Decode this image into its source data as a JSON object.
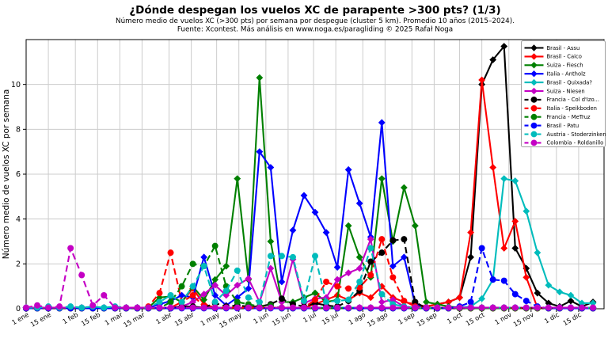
{
  "chart_data": {
    "type": "line",
    "title": "¿Dónde despegan los vuelos XC de parapente >300 pts? (1/3)",
    "subtitle_line1": "Número medio de vuelos XC (>300 pts) por semana por despegue (cluster 5 km). Promedio 10 años (2015–2024).",
    "subtitle_line2": "Fuente: Xcontest. Más análisis en www.noga.es/paragliding © 2025 Rafał Noga",
    "xlabel": "",
    "ylabel": "Número medio de vuelos XC por semana",
    "ylim": [
      0,
      12
    ],
    "yticks": [
      0,
      2,
      4,
      6,
      8,
      10
    ],
    "grid": true,
    "legend_position": "upper right",
    "x_unit": "semana del año (52 puntos semanales)",
    "xticks": [
      {
        "label": "1 ene",
        "week": 0
      },
      {
        "label": "15 ene",
        "week": 2.0
      },
      {
        "label": "1 feb",
        "week": 4.43
      },
      {
        "label": "15 feb",
        "week": 6.43
      },
      {
        "label": "1 mar",
        "week": 8.43
      },
      {
        "label": "15 mar",
        "week": 10.43
      },
      {
        "label": "1 abr",
        "week": 12.86
      },
      {
        "label": "15 abr",
        "week": 14.86
      },
      {
        "label": "1 may",
        "week": 17.14
      },
      {
        "label": "15 may",
        "week": 19.14
      },
      {
        "label": "1 jun",
        "week": 21.57
      },
      {
        "label": "15 jun",
        "week": 23.57
      },
      {
        "label": "1 jul",
        "week": 25.86
      },
      {
        "label": "15 jul",
        "week": 27.86
      },
      {
        "label": "1 ago",
        "week": 30.29
      },
      {
        "label": "15 ago",
        "week": 32.29
      },
      {
        "label": "1 sep",
        "week": 34.71
      },
      {
        "label": "15 sep",
        "week": 36.71
      },
      {
        "label": "1 oct",
        "week": 39.0
      },
      {
        "label": "15 oct",
        "week": 41.0
      },
      {
        "label": "1 nov",
        "week": 43.43
      },
      {
        "label": "15 nov",
        "week": 45.43
      },
      {
        "label": "1 dic",
        "week": 47.71
      },
      {
        "label": "15 dic",
        "week": 49.71
      }
    ],
    "series": [
      {
        "id": "assu",
        "name": "Brasil - Assu",
        "color": "#000000",
        "line": "solid",
        "marker": "diamond",
        "values": [
          0.05,
          0.05,
          0.05,
          0.05,
          0.05,
          0.05,
          0.05,
          0.05,
          0.05,
          0.05,
          0.05,
          0.05,
          0.05,
          0.05,
          0.05,
          0.05,
          0.05,
          0.05,
          0.05,
          0.05,
          0.05,
          0.05,
          0.05,
          0.05,
          0.05,
          0.05,
          0.05,
          0.05,
          0.05,
          0.05,
          0.05,
          0.05,
          0.05,
          0.05,
          0.05,
          0.05,
          0.1,
          0.2,
          0.3,
          0.5,
          2.3,
          10,
          11.1,
          11.7,
          2.7,
          1.8,
          0.7,
          0.25,
          0.1,
          0.35,
          0.1,
          0.3
        ]
      },
      {
        "id": "caico",
        "name": "Brasil - Caico",
        "color": "#ff0000",
        "line": "solid",
        "marker": "diamond",
        "values": [
          0.05,
          0.05,
          0.05,
          0.05,
          0.05,
          0.05,
          0.05,
          0.05,
          0.05,
          0.05,
          0.05,
          0.05,
          0.05,
          0.05,
          0.3,
          0.9,
          0.2,
          0.05,
          0.05,
          0.05,
          0.05,
          0.05,
          0.05,
          0.05,
          0.05,
          0.05,
          0.2,
          0.4,
          0.6,
          0.4,
          0.7,
          0.5,
          1,
          0.5,
          0.3,
          0.2,
          0.1,
          0.2,
          0.3,
          0.5,
          3.4,
          10.2,
          6.3,
          2.7,
          3.9,
          1.4,
          0.05,
          0.05,
          0.05,
          0.05,
          0.05,
          0.05
        ]
      },
      {
        "id": "fiesch",
        "name": "Suiza - Fiesch",
        "color": "#008000",
        "line": "solid",
        "marker": "diamond",
        "values": [
          0.05,
          0.05,
          0.05,
          0.05,
          0.05,
          0.05,
          0.05,
          0.05,
          0.05,
          0.05,
          0.05,
          0.05,
          0.5,
          0.55,
          0.3,
          1,
          0.4,
          1.3,
          1.9,
          5.8,
          1.3,
          10.3,
          3,
          0.3,
          0.3,
          0.5,
          0.7,
          0.3,
          0.4,
          3.7,
          2.3,
          1.4,
          5.8,
          3,
          5.4,
          3.7,
          0.3,
          0.2,
          0.1,
          0.05,
          0.05,
          0.05,
          0.05,
          0.05,
          0.05,
          0.05,
          0.05,
          0.05,
          0.05,
          0.05,
          0.05,
          0.05
        ]
      },
      {
        "id": "antholz",
        "name": "Italia - Antholz",
        "color": "#0000ff",
        "line": "solid",
        "marker": "diamond",
        "values": [
          0.05,
          0.05,
          0.05,
          0.05,
          0.05,
          0.05,
          0.05,
          0.05,
          0.05,
          0.05,
          0.05,
          0.05,
          0.2,
          0.35,
          0.6,
          0.5,
          2.3,
          0.6,
          0.15,
          0.5,
          0.9,
          7,
          6.3,
          1.2,
          3.5,
          5.05,
          4.3,
          3.4,
          1.85,
          6.2,
          4.7,
          3.2,
          8.3,
          1.9,
          2.3,
          0.2,
          0.05,
          0.05,
          0.05,
          0.05,
          0.05,
          0.05,
          0.05,
          0.05,
          0.05,
          0.05,
          0.05,
          0.05,
          0.05,
          0.05,
          0.05,
          0.05
        ]
      },
      {
        "id": "quixada",
        "name": "Brasil - Quixada?",
        "color": "#00bcbc",
        "line": "solid",
        "marker": "diamond",
        "values": [
          0.05,
          0.05,
          0.05,
          0.05,
          0.05,
          0.05,
          0.05,
          0.05,
          0.05,
          0.05,
          0.05,
          0.05,
          0.05,
          0.05,
          0.05,
          0.05,
          0.05,
          0.05,
          0.05,
          0.05,
          0.05,
          0.05,
          0.05,
          0.05,
          0.05,
          0.05,
          0.05,
          0.05,
          0.05,
          0.05,
          0.05,
          0.05,
          0.05,
          0.05,
          0.05,
          0.05,
          0.05,
          0.05,
          0.05,
          0.05,
          0.1,
          0.45,
          1.3,
          5.8,
          5.7,
          4.35,
          2.5,
          1.05,
          0.75,
          0.6,
          0.25,
          0.25
        ]
      },
      {
        "id": "niesen",
        "name": "Suiza - Niesen",
        "color": "#c400c4",
        "line": "solid",
        "marker": "diamond",
        "values": [
          0.05,
          0.05,
          0.05,
          0.05,
          0.05,
          0.05,
          0.05,
          0.05,
          0.05,
          0.05,
          0.05,
          0.05,
          0.05,
          0.05,
          0.1,
          0.3,
          0.65,
          1.05,
          0.6,
          1.05,
          1.35,
          0.3,
          1.8,
          0.3,
          2.2,
          0.25,
          0.45,
          0.5,
          1.3,
          1.6,
          1.8,
          3.1,
          0.3,
          0.4,
          0.1,
          0.05,
          0.05,
          0.05,
          0.05,
          0.05,
          0.05,
          0.05,
          0.05,
          0.05,
          0.05,
          0.05,
          0.05,
          0.05,
          0.05,
          0.05,
          0.05,
          0.05
        ]
      },
      {
        "id": "col-dizo",
        "name": "Francia - Col d'Izo...",
        "color": "#000000",
        "line": "dashed",
        "marker": "circle",
        "values": [
          0.02,
          0.02,
          0.02,
          0.02,
          0.02,
          0.02,
          0.02,
          0.02,
          0.02,
          0.02,
          0.02,
          0.02,
          0.02,
          0.02,
          0.1,
          0.1,
          0.05,
          0.25,
          0.1,
          0.15,
          0.1,
          0.1,
          0.2,
          0.45,
          0.2,
          0.1,
          0.25,
          0.15,
          0.1,
          0.35,
          0.8,
          2.1,
          2.5,
          3.05,
          3.1,
          0.3,
          0.02,
          0.02,
          0.02,
          0.02,
          0.02,
          0.02,
          0.02,
          0.02,
          0.02,
          0.02,
          0.02,
          0.02,
          0.02,
          0.02,
          0.02,
          0.02
        ]
      },
      {
        "id": "speikboden",
        "name": "Italia - Speikboden",
        "color": "#ff0000",
        "line": "dashed",
        "marker": "circle",
        "values": [
          0.02,
          0.02,
          0.02,
          0.02,
          0.02,
          0.02,
          0.02,
          0.02,
          0.02,
          0.02,
          0.02,
          0.1,
          0.7,
          2.5,
          0.3,
          0.6,
          0.1,
          0.05,
          0.05,
          0.05,
          0.05,
          0.05,
          0.05,
          0.05,
          0.05,
          0.05,
          0.4,
          1.2,
          1,
          0.9,
          0.95,
          1.5,
          3.1,
          1.4,
          0.35,
          0.1,
          0.02,
          0.02,
          0.02,
          0.02,
          0.02,
          0.02,
          0.02,
          0.02,
          0.02,
          0.02,
          0.02,
          0.02,
          0.02,
          0.02,
          0.02,
          0.02
        ]
      },
      {
        "id": "metruz",
        "name": "Francia - MeTruz",
        "color": "#008000",
        "line": "dashed",
        "marker": "circle",
        "values": [
          0.02,
          0.02,
          0.02,
          0.02,
          0.02,
          0.02,
          0.02,
          0.02,
          0.02,
          0.02,
          0.02,
          0.02,
          0.02,
          0.3,
          1,
          2,
          1.9,
          2.8,
          1,
          0.3,
          0.2,
          0.1,
          0.15,
          0.02,
          0.02,
          0.02,
          0.02,
          0.02,
          0.02,
          0.02,
          0.02,
          0.02,
          0.02,
          0.02,
          0.02,
          0.02,
          0.02,
          0.02,
          0.02,
          0.02,
          0.02,
          0.02,
          0.02,
          0.02,
          0.02,
          0.02,
          0.02,
          0.02,
          0.02,
          0.02,
          0.02,
          0.02
        ]
      },
      {
        "id": "patu",
        "name": "Brasil - Patu",
        "color": "#0000ff",
        "line": "dashed",
        "marker": "circle",
        "values": [
          0.02,
          0.02,
          0.02,
          0.02,
          0.02,
          0.02,
          0.02,
          0.02,
          0.02,
          0.02,
          0.02,
          0.02,
          0.02,
          0.02,
          0.02,
          0.02,
          0.02,
          0.02,
          0.02,
          0.02,
          0.02,
          0.02,
          0.02,
          0.02,
          0.02,
          0.02,
          0.02,
          0.02,
          0.02,
          0.02,
          0.02,
          0.02,
          0.02,
          0.02,
          0.02,
          0.02,
          0.02,
          0.02,
          0.02,
          0.1,
          0.3,
          2.7,
          1.3,
          1.25,
          0.65,
          0.35,
          0.1,
          0.02,
          0.02,
          0.02,
          0.02,
          0.02
        ]
      },
      {
        "id": "stoderzinken",
        "name": "Austria - Stoderzinken",
        "color": "#00bcbc",
        "line": "dashed",
        "marker": "circle",
        "values": [
          0.05,
          0.05,
          0.1,
          0.05,
          0.1,
          0.05,
          0.1,
          0.05,
          0.1,
          0.05,
          0.05,
          0.05,
          0.3,
          0.6,
          0.3,
          1,
          1.9,
          0.3,
          0.8,
          1.7,
          0.5,
          0.3,
          2.35,
          2.35,
          2.3,
          0.35,
          2.35,
          0.3,
          0.35,
          0.4,
          1.2,
          2.7,
          0.65,
          0.2,
          0.1,
          0.05,
          0.05,
          0.05,
          0.05,
          0.05,
          0.05,
          0.05,
          0.05,
          0.05,
          0.05,
          0.05,
          0.05,
          0.05,
          0.05,
          0.05,
          0.05,
          0.05
        ]
      },
      {
        "id": "roldanillo",
        "name": "Colombia - Roldanillo",
        "color": "#c400c4",
        "line": "dashed",
        "marker": "circle",
        "values": [
          0.05,
          0.15,
          0.05,
          0.1,
          2.7,
          1.5,
          0.15,
          0.6,
          0.05,
          0.05,
          0.05,
          0.05,
          0.05,
          0.05,
          0.05,
          0.05,
          0.05,
          0.05,
          0.05,
          0.05,
          0.05,
          0.05,
          0.05,
          0.05,
          0.05,
          0.05,
          0.05,
          0.05,
          0.05,
          0.05,
          0.05,
          0.05,
          0.05,
          0.05,
          0.05,
          0.05,
          0.05,
          0.05,
          0.05,
          0.05,
          0.05,
          0.05,
          0.05,
          0.05,
          0.05,
          0.05,
          0.05,
          0.05,
          0.05,
          0.05,
          0.05,
          0.05
        ]
      }
    ]
  }
}
